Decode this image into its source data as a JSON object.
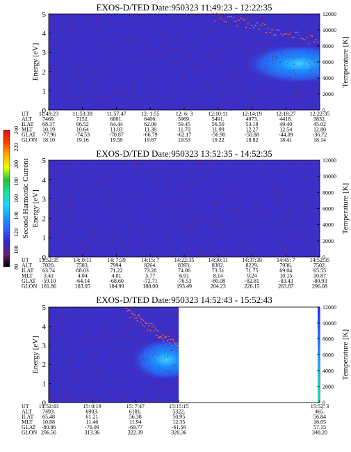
{
  "colors": {
    "background": "#3b2fc9",
    "speckle": "#7a2a55",
    "enhancement_core": "#3fd0ff",
    "enhancement_mid": "#1a8cff",
    "enhancement_outer": "#2a5ff0",
    "temperature_dots": "#ff6a3a"
  },
  "colorbar": {
    "label": "Second Harmonic Current",
    "ticks": [
      "240",
      "220",
      "200",
      "180",
      "160",
      "140",
      "120",
      "100",
      "80"
    ],
    "range": [
      80,
      240
    ],
    "colors": [
      "#000000",
      "#6b1d6b",
      "#2a2ad0",
      "#2f5cff",
      "#1a9cff",
      "#19d9ff",
      "#18e39a",
      "#22c23a",
      "#e6ff00",
      "#ffb000",
      "#ff4000",
      "#e01010"
    ]
  },
  "chart_data": [
    {
      "type": "heatmap",
      "title": "EXOS-D/TED  Date:950323  11:49:23 - 12:22:35",
      "ylabel": "Energy [eV]",
      "y2label": "Temperature [K]",
      "ylim": [
        0,
        5
      ],
      "y2lim": [
        0,
        12000
      ],
      "yticks": [
        "0",
        "1",
        "2",
        "3",
        "4",
        "5"
      ],
      "y2ticks": [
        "0",
        "2000",
        "4000",
        "6000",
        "8000",
        "10000",
        "12000"
      ],
      "table_rows": [
        "UT",
        "ALT",
        "ILAT",
        "MLT",
        "GLAT",
        "GLON"
      ],
      "columns": [
        [
          "11:49:23",
          "7469.",
          "68.37",
          "10.19",
          "-77.96",
          "18.10"
        ],
        [
          "11:53:39",
          "7152.",
          "66.52",
          "10.64",
          "-74.53",
          "19.16"
        ],
        [
          "11:57:47",
          "6801.",
          "64.44",
          "11.03",
          "-70.87",
          "19.59"
        ],
        [
          "12: 1:55",
          "6406.",
          "62.09",
          "11.38",
          "-66.79",
          "19.67"
        ],
        [
          "12: 6: 3",
          "5969.",
          "59.45",
          "11.70",
          "-62.17",
          "19.53"
        ],
        [
          "12:10:11",
          "5491.",
          "56.50",
          "11.99",
          "-56.90",
          "19.22"
        ],
        [
          "12:14:19",
          "4973.",
          "53.18",
          "12.27",
          "-50.88",
          "18.82"
        ],
        [
          "12:18:27",
          "4418.",
          "49.40",
          "12.54",
          "-44.09",
          "18.41"
        ],
        [
          "12:22:35",
          "3832.",
          "45.02",
          "12.80",
          "-36.72",
          "18.14"
        ]
      ],
      "enhancement": {
        "x_start": 0.66,
        "x_end": 1.0,
        "e_low": 1.5,
        "e_high": 3.3
      },
      "temperature_trace": {
        "x_start": 0.6,
        "x_end": 1.0,
        "k_start": 11800,
        "k_end": 8500
      }
    },
    {
      "type": "heatmap",
      "title": "EXOS-D/TED  Date:950323  13:52:35 - 14:52:35",
      "ylabel": "Energy [eV]",
      "y2label": "Temperature [K]",
      "ylim": [
        0,
        5
      ],
      "y2lim": [
        0,
        12000
      ],
      "yticks": [
        "0",
        "1",
        "2",
        "3",
        "4",
        "5"
      ],
      "y2ticks": [
        "0",
        "2000",
        "4000",
        "6000",
        "8000",
        "10000",
        "12000"
      ],
      "table_rows": [
        "UT",
        "ALT",
        "ILAT",
        "MLT",
        "GLAT",
        "GLON"
      ],
      "columns": [
        [
          "13:52:35",
          "7020.",
          "63.74",
          "3.41",
          "-59.10",
          "181.86"
        ],
        [
          "14: 0:11",
          "7583.",
          "68.03",
          "4.04",
          "-64.14",
          "183.05"
        ],
        [
          "14: 7:39",
          "7994.",
          "71.22",
          "4.81",
          "-68.60",
          "184.90"
        ],
        [
          "14:15: 7",
          "8264.",
          "73.28",
          "5.77",
          "-72.71",
          "188.00"
        ],
        [
          "14:22:35",
          "8393.",
          "74.06",
          "6.91",
          "-76.53",
          "193.49"
        ],
        [
          "14:30:11",
          "8382.",
          "73.51",
          "8.14",
          "-80.08",
          "204.23"
        ],
        [
          "14:37:39",
          "8229.",
          "71.75",
          "9.24",
          "-82.81",
          "226.15"
        ],
        [
          "14:45: 7",
          "7936.",
          "69.04",
          "10.15",
          "-83.43",
          "263.87"
        ],
        [
          "14:52:35",
          "7502.",
          "65.55",
          "10.87",
          "-80.93",
          "296.08"
        ]
      ],
      "enhancement": null,
      "temperature_trace": null
    },
    {
      "type": "heatmap",
      "title": "EXOS-D/TED  Date:950323  14:52:43 - 15:52:43",
      "ylabel": "Energy [eV]",
      "y2label": "Temperature [K]",
      "ylim": [
        0,
        5
      ],
      "y2lim": [
        0,
        12000
      ],
      "yticks": [
        "0",
        "1",
        "2",
        "3",
        "4",
        "5"
      ],
      "y2ticks": [
        "0",
        "2000",
        "4000",
        "6000",
        "8000",
        "10000",
        "12000"
      ],
      "table_rows": [
        "UT",
        "ALT",
        "ILAT",
        "MLT",
        "GLAT",
        "GLON"
      ],
      "columns": [
        [
          "14:52:43",
          "7493.",
          "65.48",
          "10.88",
          "-80.86",
          "296.50"
        ],
        [
          "15: 0:19",
          "6903.",
          "61.21",
          "11.46",
          "-76.09",
          "313.36"
        ],
        [
          "15: 7:47",
          "6181.",
          "56.38",
          "11.94",
          "-69.77",
          "322.39"
        ],
        [
          "15:15:15",
          "5322.",
          "50.95",
          "12.35",
          "-61.56",
          "328.36"
        ]
      ],
      "end_column": [
        "15:52: 3",
        "465.",
        "56.84",
        "16.05",
        "57.15",
        "348.20"
      ],
      "data_fraction": 0.48,
      "enhancement": {
        "x_start": 0.55,
        "x_end": 1.0,
        "e_low": 1.3,
        "e_high": 3.2
      },
      "temperature_trace": {
        "x_start": 0.6,
        "x_end": 1.0,
        "k_start": 11500,
        "k_end": 7000
      }
    }
  ]
}
